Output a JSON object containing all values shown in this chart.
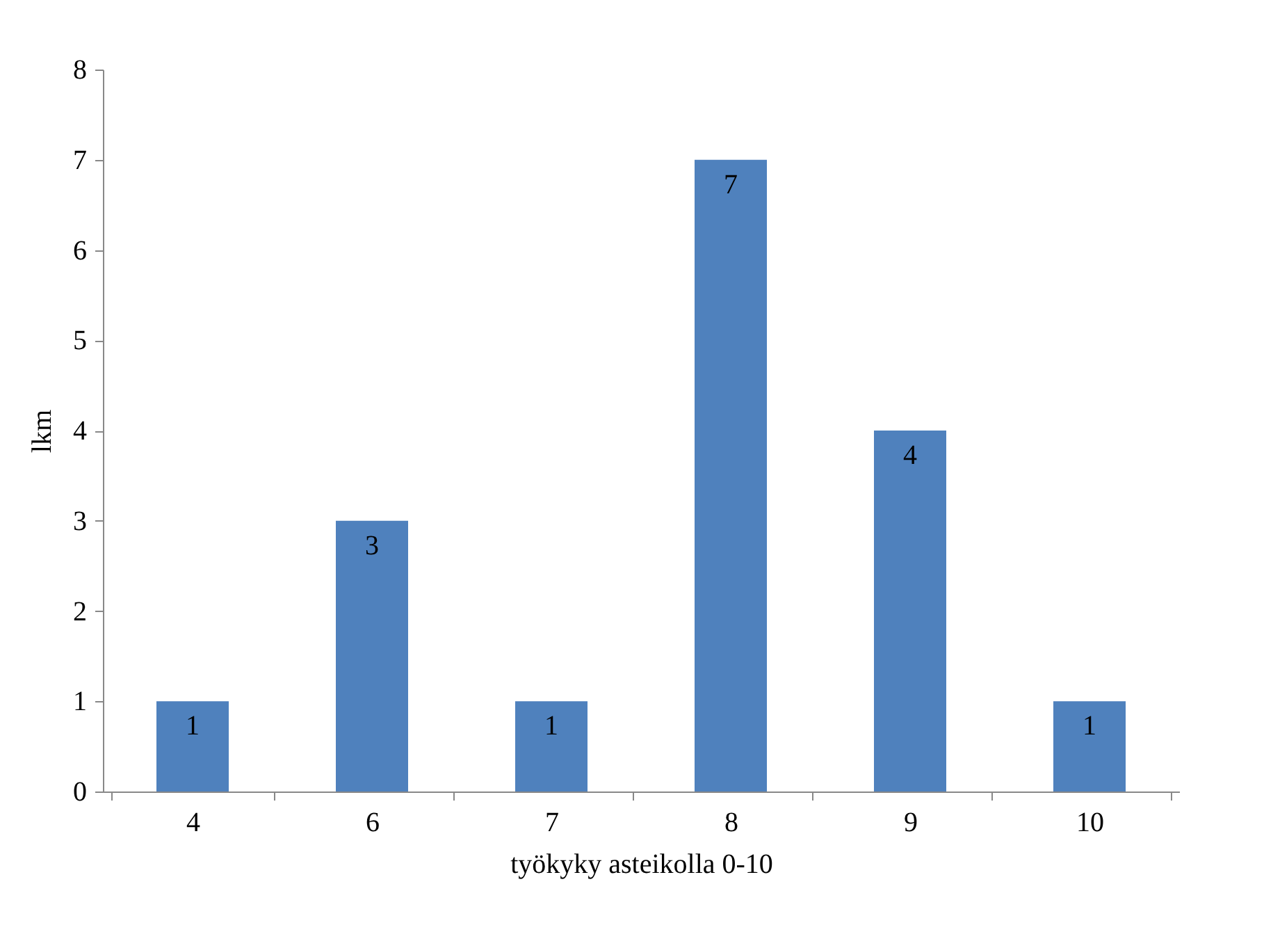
{
  "chart_data": {
    "type": "bar",
    "xlabel": "työkyky asteikolla 0-10",
    "ylabel": "lkm",
    "categories": [
      "4",
      "6",
      "7",
      "8",
      "9",
      "10"
    ],
    "values": [
      1,
      3,
      1,
      7,
      4,
      1
    ],
    "color": "#4f81bd",
    "ylim": [
      0,
      8
    ],
    "yticks": [
      0,
      1,
      2,
      3,
      4,
      5,
      6,
      7,
      8
    ],
    "grid": false,
    "data_labels": true
  }
}
